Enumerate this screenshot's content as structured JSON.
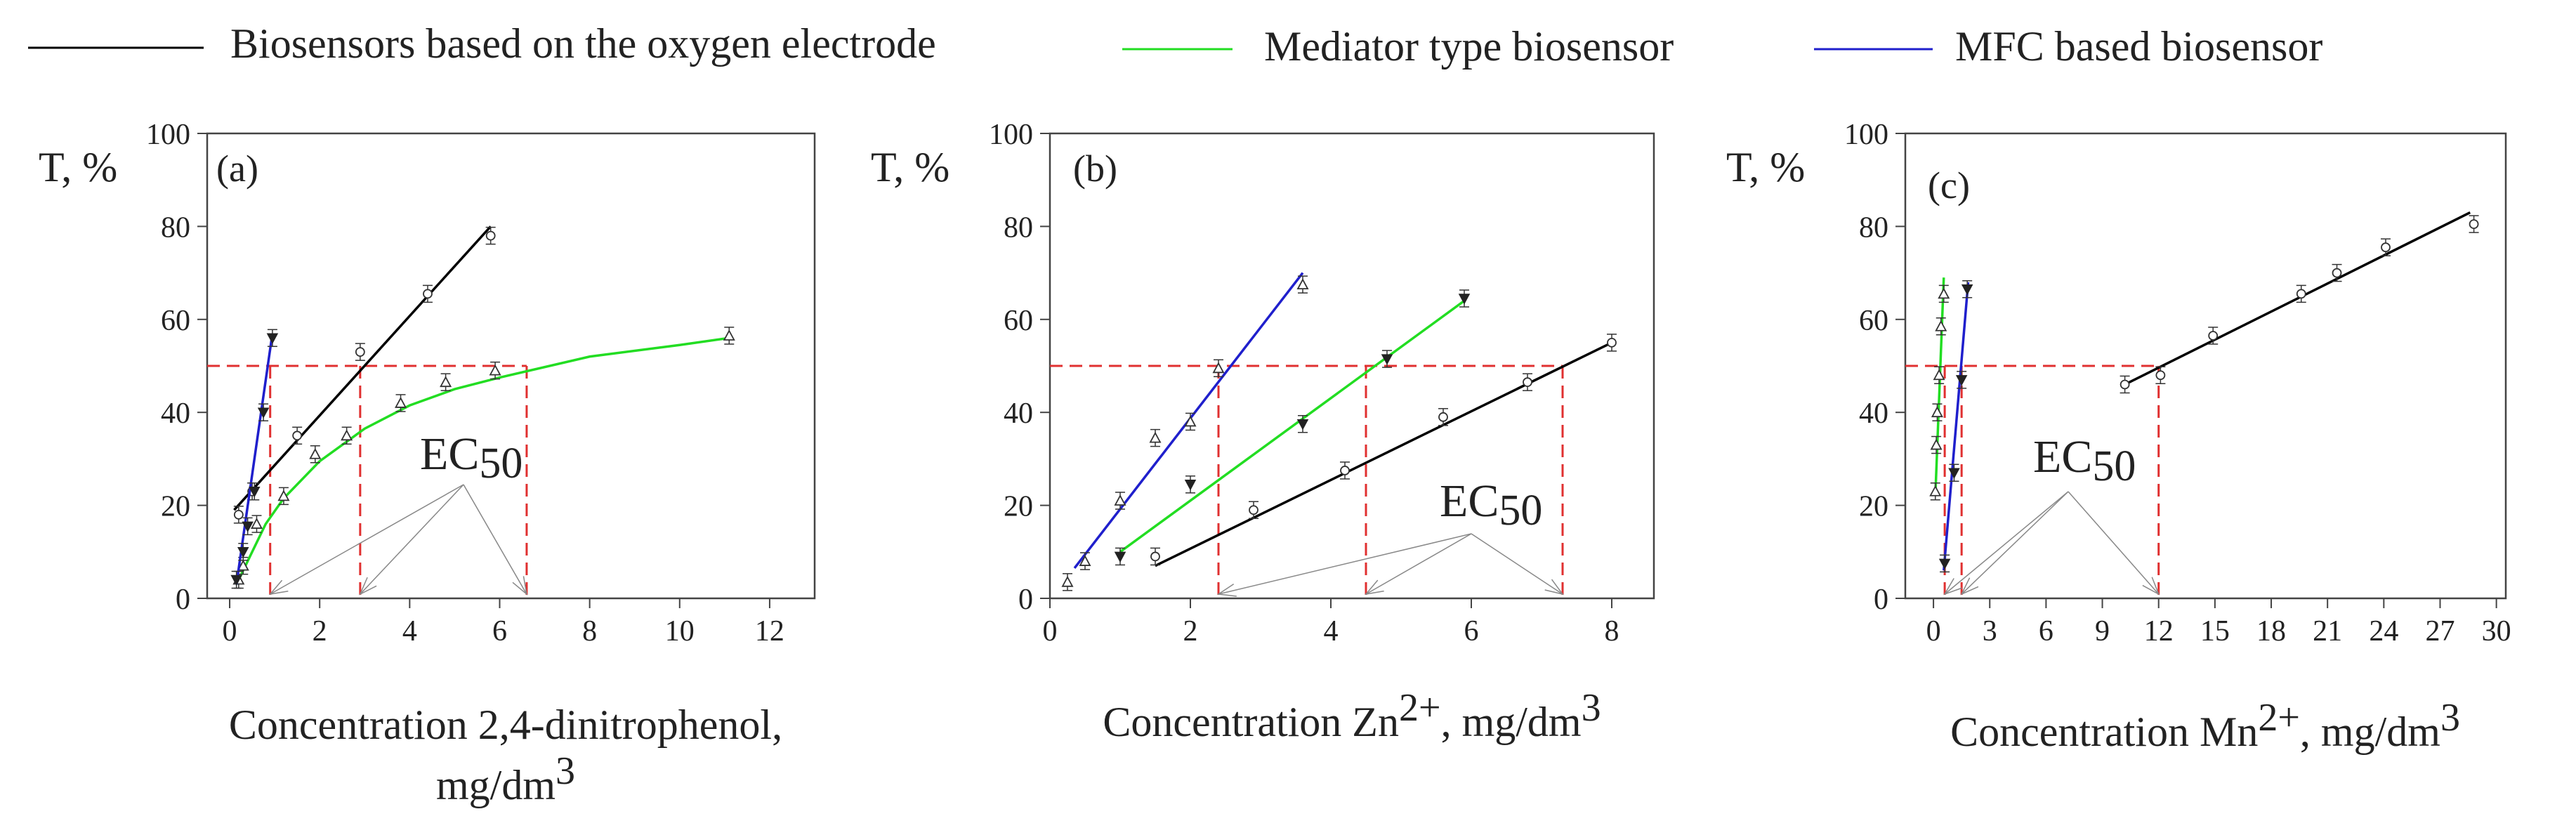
{
  "legend": {
    "items": [
      {
        "label": "Biosensors based on the oxygen electrode",
        "color": "#000000"
      },
      {
        "label": "Mediator type biosensor",
        "color": "#22dd22"
      },
      {
        "label": "MFC based biosensor",
        "color": "#1f1fcc"
      }
    ]
  },
  "threshold": {
    "y": 50,
    "color": "#e03030"
  },
  "chart_data": [
    {
      "type": "line",
      "panel": "(a)",
      "ylabel": "T, %",
      "xlabel_lines": [
        {
          "text": "Concentration 2,4-dinitrophenol,",
          "sup": ""
        },
        {
          "text": "mg/dm",
          "sup": "3"
        }
      ],
      "xlim": [
        -0.5,
        13
      ],
      "ylim": [
        0,
        100
      ],
      "xticks": [
        0,
        2,
        4,
        6,
        8,
        10,
        12
      ],
      "yticks": [
        0,
        20,
        40,
        60,
        80,
        100
      ],
      "ec50_label": "EC",
      "ec50_sub": "50",
      "ec50_values": [
        0.9,
        2.9,
        6.6
      ],
      "series": [
        {
          "color": "#000000",
          "marker": "circle",
          "points": [
            [
              0.2,
              18
            ],
            [
              0.5,
              23
            ],
            [
              1.5,
              35
            ],
            [
              2.9,
              53
            ],
            [
              4.4,
              65.5
            ],
            [
              5.8,
              78
            ]
          ],
          "fit": [
            [
              0.1,
              19
            ],
            [
              5.8,
              80
            ]
          ]
        },
        {
          "color": "#22dd22",
          "marker": "triangle-up",
          "points": [
            [
              0.2,
              4
            ],
            [
              0.3,
              7
            ],
            [
              0.6,
              16
            ],
            [
              1.2,
              22
            ],
            [
              1.9,
              31
            ],
            [
              2.6,
              35
            ],
            [
              3.8,
              42
            ],
            [
              4.8,
              46.5
            ],
            [
              5.9,
              49
            ],
            [
              11.1,
              56.5
            ]
          ],
          "curve": [
            [
              0.15,
              3
            ],
            [
              0.4,
              8
            ],
            [
              0.8,
              16
            ],
            [
              1.2,
              21.5
            ],
            [
              2,
              29.5
            ],
            [
              3,
              36.5
            ],
            [
              4,
              41.5
            ],
            [
              5,
              45
            ],
            [
              6,
              47.5
            ],
            [
              8,
              52
            ],
            [
              10,
              54.5
            ],
            [
              11.1,
              56
            ]
          ]
        },
        {
          "color": "#1f1fcc",
          "marker": "triangle-down",
          "points": [
            [
              0.15,
              4
            ],
            [
              0.3,
              10
            ],
            [
              0.4,
              15.5
            ],
            [
              0.55,
              23
            ],
            [
              0.75,
              40
            ],
            [
              0.95,
              56
            ]
          ],
          "fit": [
            [
              0.15,
              3
            ],
            [
              0.95,
              57
            ]
          ]
        }
      ]
    },
    {
      "type": "line",
      "panel": "(b)",
      "ylabel": "T, %",
      "xlabel_lines": [
        {
          "text": "Concentration Zn",
          "sup": "2+",
          "text2": ", mg/dm",
          "sup2": "3"
        }
      ],
      "xlim": [
        0,
        8.6
      ],
      "ylim": [
        0,
        100
      ],
      "xticks": [
        0,
        2,
        4,
        6,
        8
      ],
      "yticks": [
        0,
        20,
        40,
        60,
        80,
        100
      ],
      "ec50_label": "EC",
      "ec50_sub": "50",
      "ec50_values": [
        2.4,
        4.5,
        7.3
      ],
      "series": [
        {
          "color": "#000000",
          "marker": "circle",
          "points": [
            [
              1.5,
              9
            ],
            [
              2.9,
              19
            ],
            [
              4.2,
              27.5
            ],
            [
              5.6,
              39
            ],
            [
              6.8,
              46.5
            ],
            [
              8.0,
              55
            ]
          ],
          "fit": [
            [
              1.5,
              7
            ],
            [
              8.0,
              55
            ]
          ]
        },
        {
          "color": "#22dd22",
          "marker": "triangle-down",
          "points": [
            [
              1.0,
              9
            ],
            [
              2.0,
              24.5
            ],
            [
              3.6,
              37.5
            ],
            [
              4.8,
              51.5
            ],
            [
              5.9,
              64.5
            ]
          ],
          "fit": [
            [
              1.0,
              10
            ],
            [
              5.9,
              64
            ]
          ]
        },
        {
          "color": "#1f1fcc",
          "marker": "triangle-up",
          "points": [
            [
              0.25,
              3.5
            ],
            [
              0.5,
              8
            ],
            [
              1.0,
              21
            ],
            [
              1.5,
              34.5
            ],
            [
              2.0,
              38
            ],
            [
              2.4,
              49.5
            ],
            [
              3.6,
              67.5
            ]
          ],
          "fit": [
            [
              0.35,
              6.5
            ],
            [
              3.6,
              70
            ]
          ]
        }
      ]
    },
    {
      "type": "line",
      "panel": "(c)",
      "ylabel": "T, %",
      "xlabel_lines": [
        {
          "text": "Concentration Mn",
          "sup": "2+",
          "text2": ", mg/dm",
          "sup2": "3"
        }
      ],
      "xlim": [
        -1.5,
        30.5
      ],
      "ylim": [
        0,
        100
      ],
      "xticks": [
        0,
        3,
        6,
        9,
        12,
        15,
        18,
        21,
        24,
        27,
        30
      ],
      "yticks": [
        0,
        20,
        40,
        60,
        80,
        100
      ],
      "ec50_label": "EC",
      "ec50_sub": "50",
      "ec50_values": [
        0.6,
        1.5,
        12
      ],
      "series": [
        {
          "color": "#000000",
          "marker": "circle",
          "points": [
            [
              10.2,
              46
            ],
            [
              12.1,
              48
            ],
            [
              14.9,
              56.5
            ],
            [
              19.6,
              65.5
            ],
            [
              21.5,
              70
            ],
            [
              24.1,
              75.5
            ],
            [
              28.8,
              80.5
            ]
          ],
          "fit": [
            [
              10.2,
              46
            ],
            [
              28.6,
              83
            ]
          ]
        },
        {
          "color": "#22dd22",
          "marker": "triangle-up",
          "points": [
            [
              0.1,
              23
            ],
            [
              0.15,
              33
            ],
            [
              0.2,
              40
            ],
            [
              0.3,
              48
            ],
            [
              0.4,
              58.5
            ],
            [
              0.55,
              65.5
            ]
          ],
          "fit": [
            [
              0.1,
              22
            ],
            [
              0.55,
              69
            ]
          ]
        },
        {
          "color": "#1f1fcc",
          "marker": "triangle-down",
          "points": [
            [
              0.6,
              7.5
            ],
            [
              1.1,
              27
            ],
            [
              1.5,
              47
            ],
            [
              1.8,
              66.5
            ]
          ],
          "fit": [
            [
              0.55,
              6
            ],
            [
              1.85,
              68
            ]
          ]
        }
      ]
    }
  ]
}
